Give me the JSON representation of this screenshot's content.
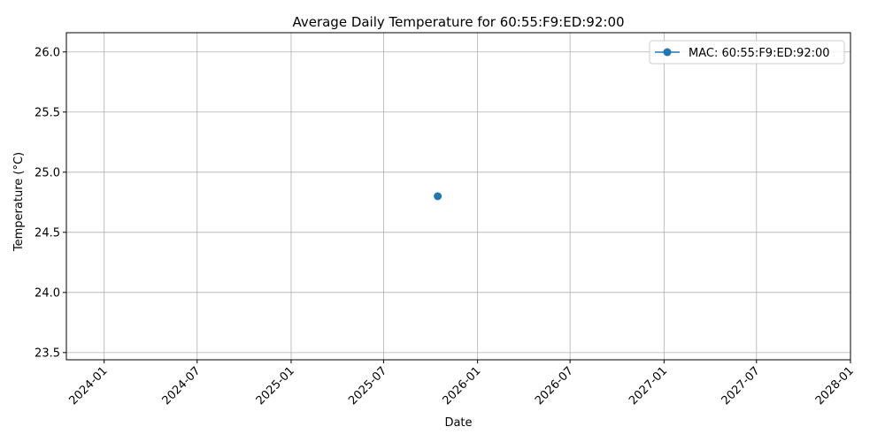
{
  "chart_data": {
    "type": "line",
    "title": "Average Daily Temperature for 60:55:F9:ED:92:00",
    "xlabel": "Date",
    "ylabel": "Temperature (°C)",
    "x_type": "date",
    "xlim": [
      "2023-10-19",
      "2028-01-01"
    ],
    "ylim": [
      23.44,
      26.16
    ],
    "x_ticks": [
      "2024-01",
      "2024-07",
      "2025-01",
      "2025-07",
      "2026-01",
      "2026-07",
      "2027-01",
      "2027-07",
      "2028-01"
    ],
    "y_ticks": [
      "23.5",
      "24.0",
      "24.5",
      "25.0",
      "25.5",
      "26.0"
    ],
    "grid": true,
    "legend_position": "top-right",
    "series": [
      {
        "name": "MAC: 60:55:F9:ED:92:00",
        "color": "#1f77b4",
        "marker": "circle",
        "points": [
          {
            "x": "2025-10-15",
            "y": 24.8
          }
        ]
      }
    ]
  }
}
